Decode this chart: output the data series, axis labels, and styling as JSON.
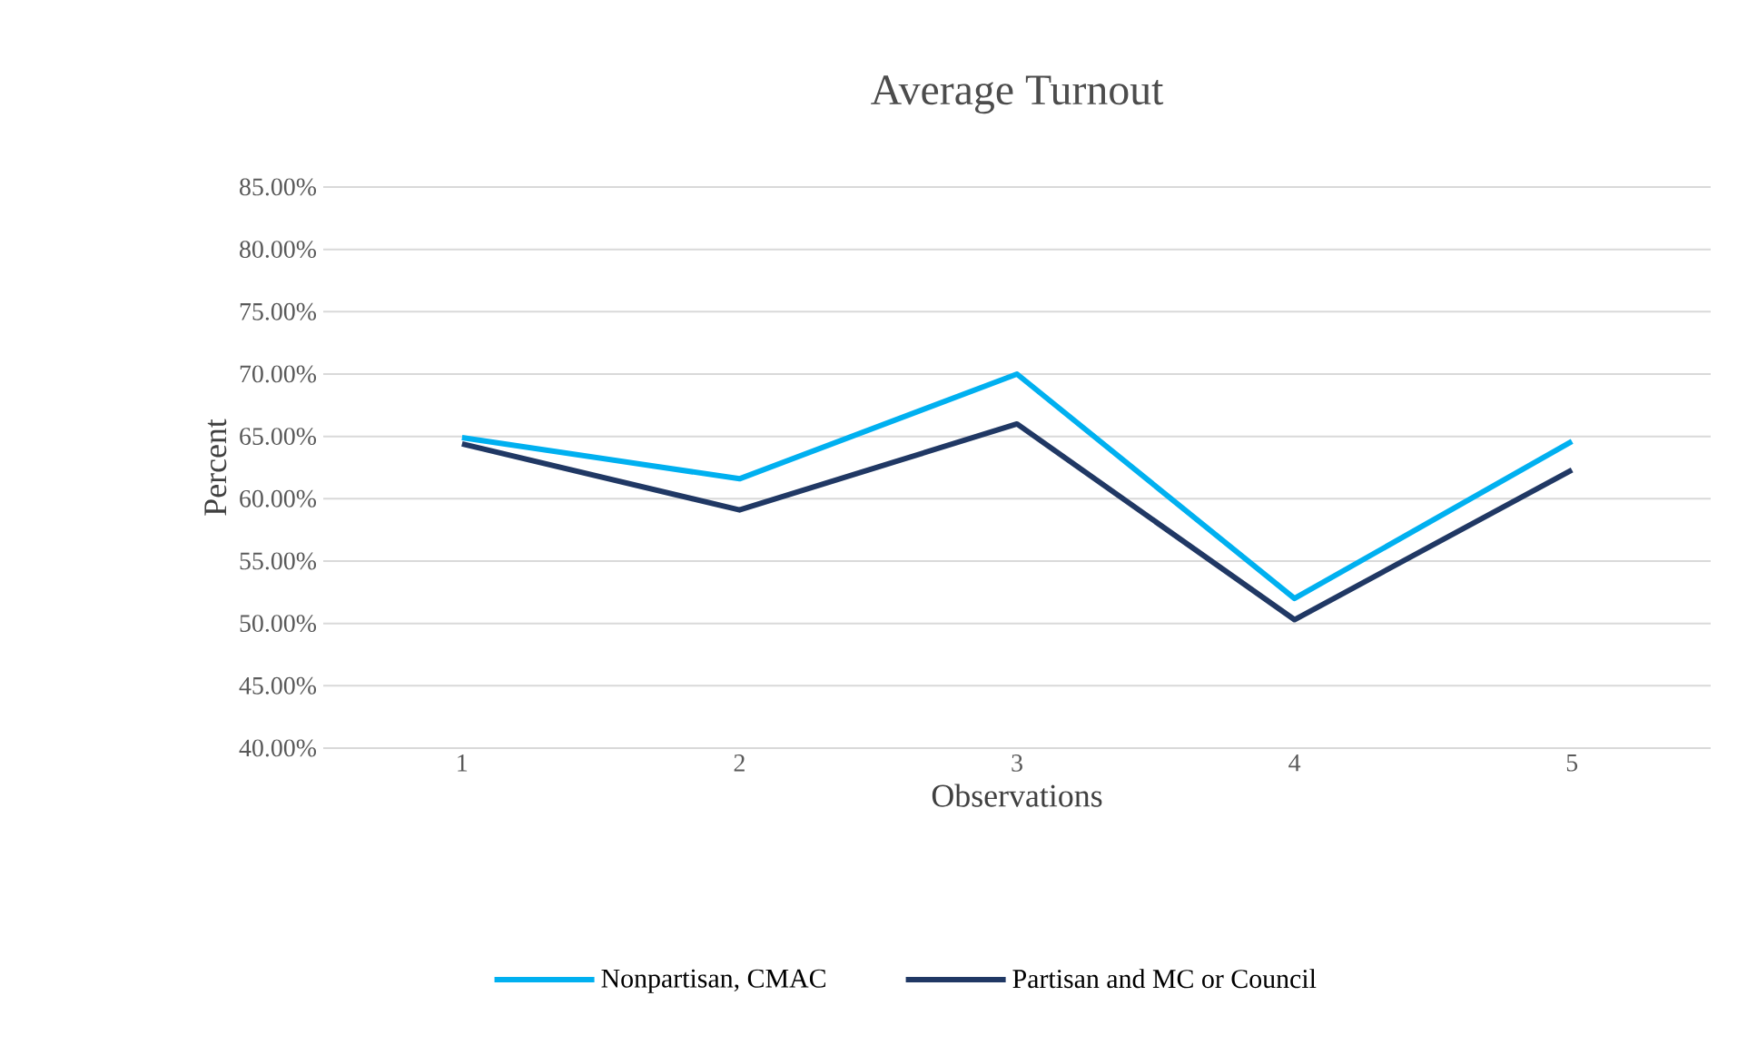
{
  "chart_data": {
    "type": "line",
    "title": "Average Turnout",
    "xlabel": "Observations",
    "ylabel": "Percent",
    "categories": [
      "1",
      "2",
      "3",
      "4",
      "5"
    ],
    "series": [
      {
        "name": "Nonpartisan, CMAC",
        "color": "#00b0f0",
        "values": [
          64.9,
          61.6,
          70.0,
          52.0,
          64.6
        ]
      },
      {
        "name": "Partisan and MC or Council",
        "color": "#203864",
        "values": [
          64.4,
          59.1,
          66.0,
          50.3,
          62.3
        ]
      }
    ],
    "ylim": [
      40,
      85
    ],
    "yticks": [
      {
        "value": 40,
        "label": "40.00%"
      },
      {
        "value": 45,
        "label": "45.00%"
      },
      {
        "value": 50,
        "label": "50.00%"
      },
      {
        "value": 55,
        "label": "55.00%"
      },
      {
        "value": 60,
        "label": "60.00%"
      },
      {
        "value": 65,
        "label": "65.00%"
      },
      {
        "value": 70,
        "label": "70.00%"
      },
      {
        "value": 75,
        "label": "75.00%"
      },
      {
        "value": 80,
        "label": "80.00%"
      },
      {
        "value": 85,
        "label": "85.00%"
      }
    ],
    "grid": "y",
    "legend": "bottom",
    "marker": "none",
    "line_style": "solid"
  }
}
